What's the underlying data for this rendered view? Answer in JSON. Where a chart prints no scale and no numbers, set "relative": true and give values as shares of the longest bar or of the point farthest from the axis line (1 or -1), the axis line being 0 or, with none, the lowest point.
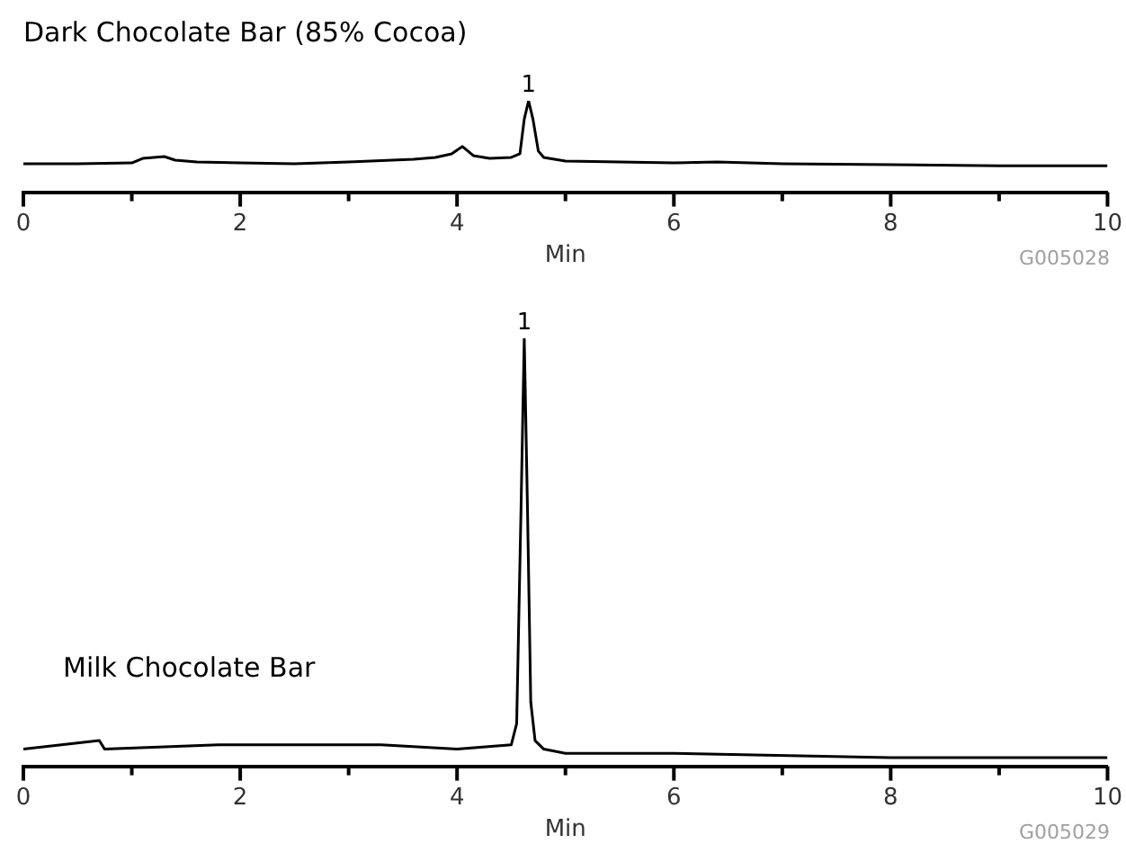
{
  "chart_data": [
    {
      "type": "line",
      "title": "Dark Chocolate Bar (85% Cocoa)",
      "xlabel": "Min",
      "relative": true,
      "xlim": [
        0,
        10
      ],
      "xticks": [
        0,
        {
          "value": 1,
          "label": null
        },
        2,
        {
          "value": 3,
          "label": null
        },
        4,
        {
          "value": 5,
          "label": null
        },
        6,
        {
          "value": 7,
          "label": null
        },
        8,
        {
          "value": 9,
          "label": null
        },
        10
      ],
      "grid": false,
      "legend": false,
      "marker": "none",
      "series": [
        {
          "color": "#000000",
          "x": [
            0,
            0.5,
            1.0,
            1.1,
            1.3,
            1.4,
            1.6,
            2.0,
            2.5,
            3.0,
            3.4,
            3.6,
            3.8,
            3.95,
            4.05,
            4.15,
            4.3,
            4.5,
            4.58,
            4.62,
            4.66,
            4.7,
            4.75,
            4.8,
            5.0,
            5.5,
            6.0,
            6.4,
            7,
            8,
            9,
            10
          ],
          "values": [
            0.31,
            0.31,
            0.32,
            0.37,
            0.39,
            0.35,
            0.33,
            0.32,
            0.31,
            0.33,
            0.35,
            0.36,
            0.38,
            0.42,
            0.5,
            0.4,
            0.37,
            0.38,
            0.42,
            0.8,
            1.0,
            0.8,
            0.45,
            0.38,
            0.34,
            0.33,
            0.32,
            0.33,
            0.31,
            0.3,
            0.29,
            0.29
          ]
        }
      ],
      "annotations": [
        {
          "text": "1",
          "x": 4.66,
          "y": 1
        },
        "G005028"
      ]
    },
    {
      "type": "line",
      "title": "Milk Chocolate Bar",
      "xlabel": "Min",
      "relative": true,
      "xlim": [
        0,
        10
      ],
      "xticks": [
        0,
        {
          "value": 1,
          "label": null
        },
        2,
        {
          "value": 3,
          "label": null
        },
        4,
        {
          "value": 5,
          "label": null
        },
        6,
        {
          "value": 7,
          "label": null
        },
        8,
        {
          "value": 9,
          "label": null
        },
        10
      ],
      "grid": false,
      "legend": false,
      "marker": "none",
      "series": [
        {
          "color": "#000000",
          "x": [
            0,
            0.7,
            0.75,
            1.8,
            3.1,
            3.3,
            4.0,
            4.5,
            4.55,
            4.59,
            4.62,
            4.65,
            4.68,
            4.72,
            4.8,
            5,
            6,
            8,
            10
          ],
          "values": [
            0.04,
            0.06,
            0.04,
            0.05,
            0.05,
            0.05,
            0.04,
            0.05,
            0.1,
            0.6,
            1.0,
            0.6,
            0.15,
            0.06,
            0.04,
            0.03,
            0.03,
            0.02,
            0.02
          ]
        }
      ],
      "annotations": [
        {
          "text": "1",
          "x": 4.62,
          "y": 1
        },
        "G005029"
      ]
    }
  ]
}
